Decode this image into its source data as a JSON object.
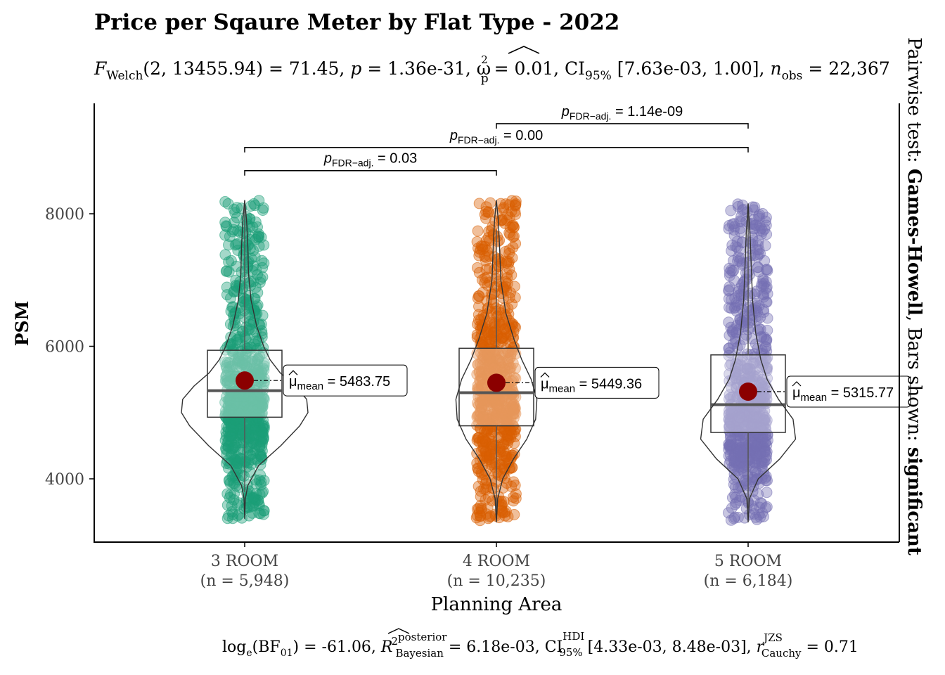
{
  "colors": {
    "3 ROOM": "#1b9e77",
    "4 ROOM": "#d95f02",
    "5 ROOM": "#7570b3",
    "mean": "#8b0000",
    "axis": "#000000"
  },
  "chart_data": {
    "type": "violin-box-jitter",
    "title": "Price per Sqaure Meter by Flat Type - 2022",
    "subtitle": {
      "stat": "F",
      "stat_sub": "Welch",
      "args": "(2, 13455.94) = 71.45, ",
      "p_label": "p",
      "p_value": " = 1.36e-31, ",
      "effect": "ω",
      "effect_sup": "2",
      "effect_sub": "p",
      "effect_value": " = 0.01, CI",
      "ci_sub": "95%",
      "ci_value": " [7.63e-03, 1.00], ",
      "n_label": "n",
      "n_sub": "obs",
      "n_value": " = 22,367"
    },
    "xlabel": "Planning Area",
    "ylabel": "PSM",
    "ylim": [
      3100,
      9700
    ],
    "y_ticks": [
      "4000",
      "6000",
      "8000"
    ],
    "categories": [
      "3 ROOM",
      "4 ROOM",
      "5 ROOM"
    ],
    "n_labels": [
      "(n = 5,948)",
      "(n = 10,235)",
      "(n = 6,184)"
    ],
    "groups": [
      {
        "name": "3 ROOM",
        "min": 3400,
        "q1": 4930,
        "median": 5330,
        "q3": 5940,
        "max": 8200,
        "mean": 5483.75,
        "mean_label": "5483.75",
        "whisker_low": 3800,
        "whisker_high": 8200,
        "violin": [
          [
            3400,
            0.0
          ],
          [
            3700,
            0.01
          ],
          [
            3900,
            0.05
          ],
          [
            4200,
            0.22
          ],
          [
            4500,
            0.57
          ],
          [
            4800,
            0.87
          ],
          [
            5000,
            1.0
          ],
          [
            5200,
            0.98
          ],
          [
            5400,
            0.8
          ],
          [
            5600,
            0.56
          ],
          [
            5800,
            0.4
          ],
          [
            6000,
            0.3
          ],
          [
            6300,
            0.19
          ],
          [
            6700,
            0.1
          ],
          [
            7100,
            0.06
          ],
          [
            7500,
            0.05
          ],
          [
            7900,
            0.03
          ],
          [
            8200,
            0.0
          ]
        ]
      },
      {
        "name": "4 ROOM",
        "min": 3350,
        "q1": 4800,
        "median": 5300,
        "q3": 5970,
        "max": 8200,
        "mean": 5449.36,
        "mean_label": "5449.36",
        "whisker_low": 3500,
        "whisker_high": 7750,
        "violin": [
          [
            3350,
            0.0
          ],
          [
            3700,
            0.02
          ],
          [
            4000,
            0.1
          ],
          [
            4300,
            0.27
          ],
          [
            4600,
            0.48
          ],
          [
            4900,
            0.62
          ],
          [
            5200,
            0.64
          ],
          [
            5500,
            0.55
          ],
          [
            5800,
            0.4
          ],
          [
            6100,
            0.28
          ],
          [
            6500,
            0.15
          ],
          [
            7000,
            0.07
          ],
          [
            7500,
            0.05
          ],
          [
            7900,
            0.03
          ],
          [
            8200,
            0.0
          ]
        ]
      },
      {
        "name": "5 ROOM",
        "min": 3350,
        "q1": 4700,
        "median": 5120,
        "q3": 5870,
        "max": 8150,
        "mean": 5315.77,
        "mean_label": "5315.77",
        "whisker_low": 3550,
        "whisker_high": 8150,
        "violin": [
          [
            3350,
            0.0
          ],
          [
            3700,
            0.02
          ],
          [
            4000,
            0.16
          ],
          [
            4300,
            0.5
          ],
          [
            4600,
            0.75
          ],
          [
            4900,
            0.71
          ],
          [
            5200,
            0.48
          ],
          [
            5500,
            0.3
          ],
          [
            5800,
            0.2
          ],
          [
            6200,
            0.12
          ],
          [
            6700,
            0.07
          ],
          [
            7200,
            0.05
          ],
          [
            7700,
            0.03
          ],
          [
            8150,
            0.0
          ]
        ]
      }
    ],
    "mean_symbol": "μ",
    "mean_sub": "mean",
    "pairwise": [
      {
        "from": "3 ROOM",
        "to": "4 ROOM",
        "y": 8650,
        "p_label": "p",
        "sub": "FDR−adj.",
        "value": " = 0.03"
      },
      {
        "from": "3 ROOM",
        "to": "5 ROOM",
        "y": 9000,
        "p_label": "p",
        "sub": "FDR−adj.",
        "value": " = 0.00"
      },
      {
        "from": "4 ROOM",
        "to": "5 ROOM",
        "y": 9360,
        "p_label": "p",
        "sub": "FDR−adj.",
        "value": " = 1.14e-09"
      }
    ],
    "caption": {
      "log": "log",
      "log_sub": "e",
      "bf": "(BF",
      "bf_sub": "01",
      "bf_value": ") = -61.06, ",
      "r2": "R",
      "r2_sup": "2",
      "r2_sup2": "posterior",
      "r2_sub": "Bayesian",
      "r2_value": " = 6.18e-03, CI",
      "ci_sup": "HDI",
      "ci_sub": "95%",
      "ci_value": " [4.33e-03, 8.48e-03], ",
      "r": "r",
      "r_sup": "JZS",
      "r_sub": "Cauchy",
      "r_value": " = 0.71"
    },
    "side_label": {
      "prefix": "Pairwise test: ",
      "test": "Games-Howell",
      "middle": ", Bars shown: ",
      "shown": "significant"
    }
  }
}
